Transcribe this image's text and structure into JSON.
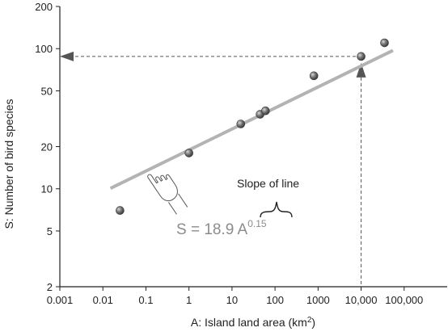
{
  "chart_data": {
    "type": "scatter",
    "xscale": "log",
    "yscale": "log",
    "xlim": [
      0.001,
      1000000
    ],
    "ylim": [
      2,
      200
    ],
    "xlabel": "A: Island land area (km",
    "xlabel_sup": "2",
    "xlabel_end": ")",
    "ylabel": "S: Number of bird species",
    "x_ticks": [
      {
        "value": 0.001,
        "label": "0.001"
      },
      {
        "value": 0.01,
        "label": "0.01"
      },
      {
        "value": 0.1,
        "label": "0.1"
      },
      {
        "value": 1,
        "label": "1"
      },
      {
        "value": 10,
        "label": "10"
      },
      {
        "value": 100,
        "label": "100"
      },
      {
        "value": 1000,
        "label": "1000"
      },
      {
        "value": 10000,
        "label": "10,000"
      },
      {
        "value": 100000,
        "label": "100,000"
      }
    ],
    "y_ticks": [
      {
        "value": 2,
        "label": "2"
      },
      {
        "value": 5,
        "label": "5"
      },
      {
        "value": 10,
        "label": "10"
      },
      {
        "value": 20,
        "label": "20"
      },
      {
        "value": 50,
        "label": "50"
      },
      {
        "value": 100,
        "label": "100"
      },
      {
        "value": 200,
        "label": "200"
      }
    ],
    "points": [
      {
        "x": 0.025,
        "y": 7
      },
      {
        "x": 1,
        "y": 18
      },
      {
        "x": 16,
        "y": 29
      },
      {
        "x": 45,
        "y": 34
      },
      {
        "x": 60,
        "y": 36
      },
      {
        "x": 800,
        "y": 64
      },
      {
        "x": 10000,
        "y": 88
      },
      {
        "x": 35000,
        "y": 110
      }
    ],
    "fit_line": {
      "coefficient": 18.9,
      "exponent": 0.15,
      "x_range": [
        0.015,
        55000
      ]
    },
    "reference": {
      "x": 10000,
      "y": 88
    },
    "annotations": {
      "slope_label": "Slope of line",
      "equation_main": "S = 18.9 A",
      "equation_exponent": "0.15"
    },
    "colors": {
      "point": "#6e6e6e",
      "fit_line": "#b3b3b3",
      "reference": "#555555",
      "axis": "#222222"
    },
    "grid": false
  }
}
